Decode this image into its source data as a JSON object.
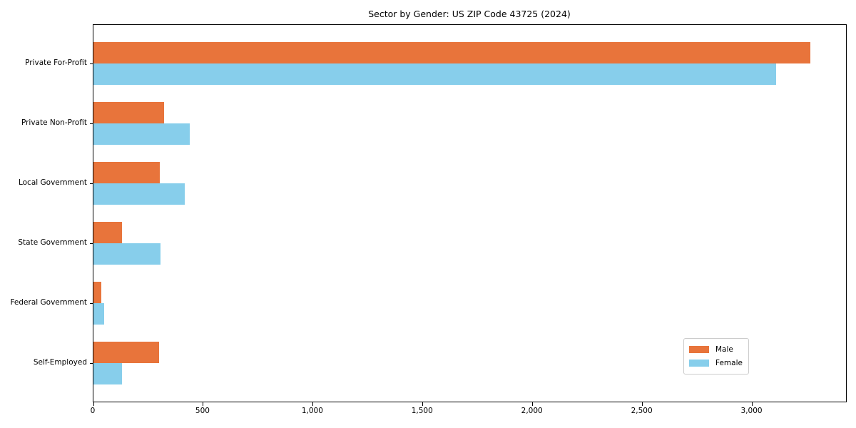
{
  "chart_data": {
    "type": "bar",
    "orientation": "horizontal",
    "title": "Sector by Gender: US ZIP Code 43725 (2024)",
    "categories": [
      "Private For-Profit",
      "Private Non-Profit",
      "Local Government",
      "State Government",
      "Federal Government",
      "Self-Employed"
    ],
    "series": [
      {
        "name": "Male",
        "color": "#E8743B",
        "values": [
          3264,
          320,
          303,
          131,
          35,
          300
        ]
      },
      {
        "name": "Female",
        "color": "#87CEEB",
        "values": [
          3110,
          437,
          417,
          306,
          47,
          130
        ]
      }
    ],
    "xlim": [
      0,
      3427
    ],
    "x_ticks": [
      0,
      500,
      1000,
      1500,
      2000,
      2500,
      3000
    ],
    "x_tick_labels": [
      "0",
      "500",
      "1,000",
      "1,500",
      "2,000",
      "2,500",
      "3,000"
    ],
    "ylabel": "",
    "xlabel": "",
    "grid": false,
    "legend": {
      "position": "lower-right",
      "entries": [
        {
          "label": "Male",
          "color": "#E8743B"
        },
        {
          "label": "Female",
          "color": "#87CEEB"
        }
      ]
    }
  }
}
